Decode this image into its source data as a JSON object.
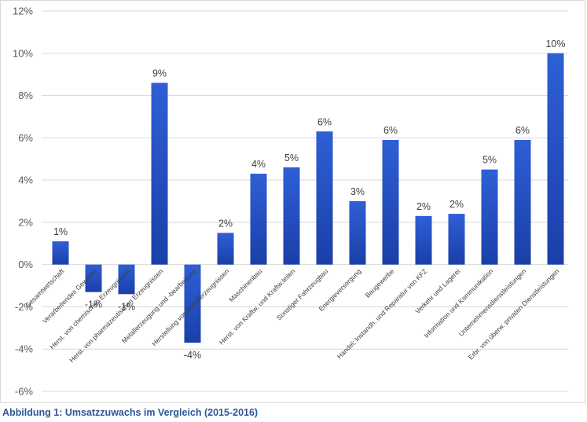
{
  "caption": "Abbildung 1: Umsatzzuwachs im Vergleich (2015-2016)",
  "colors": {
    "bar_top": "#2f5fd6",
    "bar_bottom": "#1a3fa8",
    "grid": "#d9d9d9",
    "axis_text": "#595959"
  },
  "chart_data": {
    "type": "bar",
    "title": "",
    "xlabel": "",
    "ylabel": "",
    "ylim": [
      -6,
      12
    ],
    "yticks": [
      -6,
      -4,
      -2,
      0,
      2,
      4,
      6,
      8,
      10,
      12
    ],
    "ytick_labels": [
      "-6%",
      "-4%",
      "-2%",
      "0%",
      "2%",
      "4%",
      "6%",
      "8%",
      "10%",
      "12%"
    ],
    "grid": true,
    "categories": [
      "Gesamtwirtschaft",
      "Verarbeitendes Gewerbe",
      "Herst. von chemischen Erzeugnissen",
      "Herst. von pharmazeutischen Erzeugnissen",
      "Metallerzeugung und -bearbeitung",
      "Herstellung von Metallerzeugnissen",
      "Maschinenbau",
      "Herst. von Kraftw. und Kraftw.teilen",
      "Sonstiger Fahrzeugbau",
      "Energieversorgung",
      "Baugewerbe",
      "Handel; Instandh. und Reparatur von KFZ",
      "Verkehr und Lagerei",
      "Information und Kommunikation",
      "Unternehmensdienstleistungen",
      "Erbr. von überw. privaten Dienstleistungen"
    ],
    "values": [
      1.1,
      -1.3,
      -1.4,
      8.6,
      -3.7,
      1.5,
      4.3,
      4.6,
      6.3,
      3.0,
      5.9,
      2.3,
      2.4,
      4.5,
      5.9,
      10.0
    ],
    "data_labels": [
      "1%",
      "-1%",
      "-1%",
      "9%",
      "-4%",
      "2%",
      "4%",
      "5%",
      "6%",
      "3%",
      "6%",
      "2%",
      "2%",
      "5%",
      "6%",
      "10%"
    ]
  }
}
